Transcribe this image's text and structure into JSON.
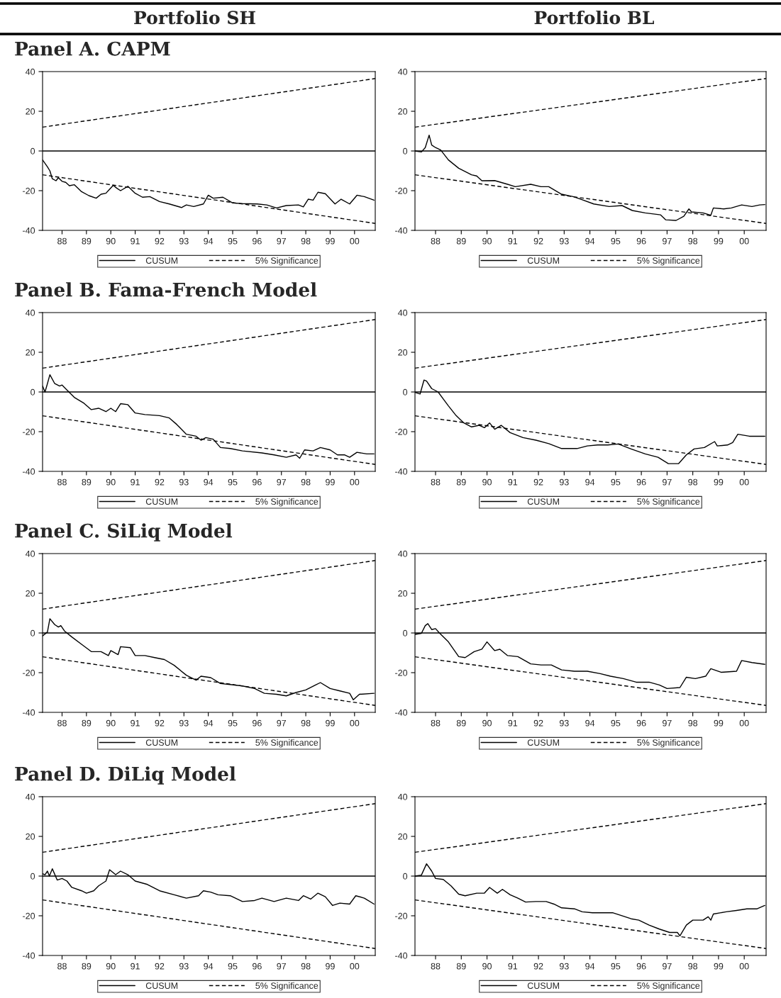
{
  "chart_data": [
    {
      "type": "line",
      "title": "Panel A. CAPM",
      "subtitle": "Portfolio SH",
      "xlim": [
        1987.2,
        2000.85
      ],
      "ylim": [
        -40,
        40
      ],
      "yticks": [
        -40,
        -20,
        0,
        20,
        40
      ],
      "xticks": [
        {
          "value": 1988,
          "label": "88"
        },
        {
          "value": 1989,
          "label": "89"
        },
        {
          "value": 1990,
          "label": "90"
        },
        {
          "value": 1991,
          "label": "91"
        },
        {
          "value": 1992,
          "label": "92"
        },
        {
          "value": 1993,
          "label": "93"
        },
        {
          "value": 1994,
          "label": "94"
        },
        {
          "value": 1995,
          "label": "95"
        },
        {
          "value": 1996,
          "label": "96"
        },
        {
          "value": 1997,
          "label": "97"
        },
        {
          "value": 1998,
          "label": "98"
        },
        {
          "value": 1999,
          "label": "99"
        },
        {
          "value": 2000,
          "label": "00"
        }
      ],
      "legend": "bottom",
      "ref_lines": [
        {
          "axis": "y",
          "value": 0,
          "color": "#000000"
        }
      ],
      "series": [
        {
          "name": "CUSUM",
          "color": "#000000",
          "line_style": "solid",
          "x": [
            1987.2,
            1987.4,
            1987.5,
            1987.6,
            1987.75,
            1987.85,
            1988.0,
            1988.15,
            1988.3,
            1988.5,
            1988.8,
            1989.1,
            1989.4,
            1989.6,
            1989.8,
            1989.95,
            1990.1,
            1990.25,
            1990.4,
            1990.7,
            1991.0,
            1991.3,
            1991.6,
            1992.0,
            1992.4,
            1992.9,
            1993.1,
            1993.4,
            1993.8,
            1994.0,
            1994.2,
            1994.6,
            1995.0,
            1995.4,
            1996.0,
            1996.4,
            1996.8,
            1997.2,
            1997.7,
            1997.9,
            1998.1,
            1998.3,
            1998.5,
            1998.8,
            1999.2,
            1999.45,
            1999.8,
            2000.1,
            2000.4,
            2000.8
          ],
          "values": [
            -4.5,
            -8,
            -10,
            -14,
            -15,
            -13.5,
            -15.3,
            -15.8,
            -17.5,
            -17,
            -20.5,
            -22.5,
            -23.8,
            -21.8,
            -21.3,
            -19.3,
            -17.3,
            -18.8,
            -20,
            -17.8,
            -21.3,
            -23.3,
            -23,
            -25.5,
            -26.7,
            -28.5,
            -27.2,
            -28,
            -26.7,
            -22.3,
            -23.8,
            -23.3,
            -26.2,
            -26.5,
            -26.7,
            -27.2,
            -28.7,
            -27.5,
            -27.2,
            -28.2,
            -24.3,
            -24.8,
            -20.8,
            -21.5,
            -26.7,
            -24.3,
            -26.7,
            -22.3,
            -23,
            -24.8
          ]
        },
        {
          "name": "5% Significance",
          "color": "#000000",
          "line_style": "dashed",
          "x": [
            1987.2,
            2000.85
          ],
          "values": [
            12,
            36.5
          ]
        },
        {
          "color": "#000000",
          "line_style": "dashed",
          "x": [
            1987.2,
            2000.85
          ],
          "values": [
            -12,
            -36.5
          ]
        }
      ]
    },
    {
      "type": "line",
      "subtitle": "Portfolio BL",
      "xlim": [
        1987.2,
        2000.85
      ],
      "ylim": [
        -40,
        40
      ],
      "yticks": [
        -40,
        -20,
        0,
        20,
        40
      ],
      "xticks": [
        {
          "value": 1988,
          "label": "88"
        },
        {
          "value": 1989,
          "label": "89"
        },
        {
          "value": 1990,
          "label": "90"
        },
        {
          "value": 1991,
          "label": "91"
        },
        {
          "value": 1992,
          "label": "92"
        },
        {
          "value": 1993,
          "label": "93"
        },
        {
          "value": 1994,
          "label": "94"
        },
        {
          "value": 1995,
          "label": "95"
        },
        {
          "value": 1996,
          "label": "96"
        },
        {
          "value": 1997,
          "label": "97"
        },
        {
          "value": 1998,
          "label": "98"
        },
        {
          "value": 1999,
          "label": "99"
        },
        {
          "value": 2000,
          "label": "00"
        }
      ],
      "legend": "bottom",
      "ref_lines": [
        {
          "axis": "y",
          "value": 0,
          "color": "#000000"
        }
      ],
      "series": [
        {
          "name": "CUSUM",
          "color": "#000000",
          "line_style": "solid",
          "x": [
            1987.2,
            1987.45,
            1987.6,
            1987.75,
            1987.85,
            1988.0,
            1988.2,
            1988.5,
            1988.9,
            1989.4,
            1989.6,
            1989.8,
            1990.3,
            1990.8,
            1991.1,
            1991.7,
            1992.1,
            1992.4,
            1992.9,
            1993.35,
            1993.65,
            1994.15,
            1994.75,
            1995.25,
            1995.65,
            1996.15,
            1996.75,
            1996.95,
            1997.35,
            1997.65,
            1997.85,
            1997.95,
            1998.4,
            1998.7,
            1998.8,
            1999.2,
            1999.5,
            1999.9,
            2000.3,
            2000.6,
            2000.8
          ],
          "values": [
            0,
            -0.5,
            1.7,
            8,
            3,
            1.7,
            0.5,
            -4.5,
            -8.7,
            -12,
            -12.6,
            -15,
            -14.9,
            -16.8,
            -18,
            -16.8,
            -18,
            -18,
            -21.8,
            -23,
            -24.3,
            -26.7,
            -28,
            -27.5,
            -30,
            -31.2,
            -32.2,
            -34.7,
            -35,
            -32.9,
            -29.2,
            -30.7,
            -31.2,
            -32.4,
            -28.7,
            -29.2,
            -28.7,
            -27.2,
            -28,
            -27.2,
            -27
          ]
        },
        {
          "name": "5% Significance",
          "color": "#000000",
          "line_style": "dashed",
          "x": [
            1987.2,
            2000.85
          ],
          "values": [
            12,
            36.5
          ]
        },
        {
          "color": "#000000",
          "line_style": "dashed",
          "x": [
            1987.2,
            2000.85
          ],
          "values": [
            -12,
            -36.5
          ]
        }
      ]
    },
    {
      "type": "line",
      "title": "Panel B. Fama-French Model",
      "xlim": [
        1987.2,
        2000.85
      ],
      "ylim": [
        -40,
        40
      ],
      "yticks": [
        -40,
        -20,
        0,
        20,
        40
      ],
      "xticks": [
        {
          "value": 1988,
          "label": "88"
        },
        {
          "value": 1989,
          "label": "89"
        },
        {
          "value": 1990,
          "label": "90"
        },
        {
          "value": 1991,
          "label": "91"
        },
        {
          "value": 1992,
          "label": "92"
        },
        {
          "value": 1993,
          "label": "93"
        },
        {
          "value": 1994,
          "label": "94"
        },
        {
          "value": 1995,
          "label": "95"
        },
        {
          "value": 1996,
          "label": "96"
        },
        {
          "value": 1997,
          "label": "97"
        },
        {
          "value": 1998,
          "label": "98"
        },
        {
          "value": 1999,
          "label": "99"
        },
        {
          "value": 2000,
          "label": "00"
        }
      ],
      "legend": "bottom",
      "ref_lines": [
        {
          "axis": "y",
          "value": 0,
          "color": "#000000"
        }
      ],
      "series": [
        {
          "name": "CUSUM",
          "color": "#000000",
          "line_style": "solid",
          "x": [
            1987.2,
            1987.3,
            1987.4,
            1987.5,
            1987.7,
            1987.9,
            1988.0,
            1988.2,
            1988.5,
            1988.9,
            1989.2,
            1989.5,
            1989.8,
            1990.0,
            1990.2,
            1990.4,
            1990.7,
            1991.0,
            1991.4,
            1992.0,
            1992.4,
            1992.7,
            1993.1,
            1993.5,
            1993.7,
            1993.9,
            1994.2,
            1994.5,
            1994.9,
            1995.4,
            1996.2,
            1996.7,
            1997.2,
            1997.6,
            1997.75,
            1997.95,
            1998.3,
            1998.6,
            1999.0,
            1999.3,
            1999.6,
            1999.8,
            2000.1,
            2000.5,
            2000.8
          ],
          "values": [
            3,
            0,
            4.2,
            8.7,
            4.2,
            3,
            3.5,
            1,
            -2.7,
            -5.7,
            -8.9,
            -8.2,
            -9.9,
            -8.2,
            -9.9,
            -5.9,
            -6.4,
            -10.6,
            -11.4,
            -11.9,
            -13.1,
            -16.3,
            -21.3,
            -22.3,
            -24.3,
            -23,
            -23.8,
            -28,
            -28.5,
            -29.7,
            -30.7,
            -31.7,
            -32.9,
            -31.7,
            -33.4,
            -29.2,
            -29.7,
            -28,
            -29.2,
            -31.7,
            -31.7,
            -32.9,
            -30.4,
            -31.2,
            -31.2
          ]
        },
        {
          "name": "5% Significance",
          "color": "#000000",
          "line_style": "dashed",
          "x": [
            1987.2,
            2000.85
          ],
          "values": [
            12,
            36.5
          ]
        },
        {
          "color": "#000000",
          "line_style": "dashed",
          "x": [
            1987.2,
            2000.85
          ],
          "values": [
            -12,
            -36.5
          ]
        }
      ]
    },
    {
      "type": "line",
      "xlim": [
        1987.2,
        2000.85
      ],
      "ylim": [
        -40,
        40
      ],
      "yticks": [
        -40,
        -20,
        0,
        20,
        40
      ],
      "xticks": [
        {
          "value": 1988,
          "label": "88"
        },
        {
          "value": 1989,
          "label": "89"
        },
        {
          "value": 1990,
          "label": "90"
        },
        {
          "value": 1991,
          "label": "91"
        },
        {
          "value": 1992,
          "label": "92"
        },
        {
          "value": 1993,
          "label": "93"
        },
        {
          "value": 1994,
          "label": "94"
        },
        {
          "value": 1995,
          "label": "95"
        },
        {
          "value": 1996,
          "label": "96"
        },
        {
          "value": 1997,
          "label": "97"
        },
        {
          "value": 1998,
          "label": "98"
        },
        {
          "value": 1999,
          "label": "99"
        },
        {
          "value": 2000,
          "label": "00"
        }
      ],
      "legend": "bottom",
      "ref_lines": [
        {
          "axis": "y",
          "value": 0,
          "color": "#000000"
        }
      ],
      "series": [
        {
          "name": "CUSUM",
          "color": "#000000",
          "line_style": "solid",
          "x": [
            1987.2,
            1987.4,
            1987.55,
            1987.65,
            1987.85,
            1988.1,
            1988.3,
            1988.5,
            1988.8,
            1989.1,
            1989.4,
            1989.7,
            1989.9,
            1990.1,
            1990.3,
            1990.55,
            1990.9,
            1991.4,
            1991.9,
            1992.4,
            1992.9,
            1993.5,
            1993.9,
            1994.3,
            1994.7,
            1995.1,
            1995.6,
            1996.15,
            1996.65,
            1997.05,
            1997.45,
            1997.75,
            1998.05,
            1998.45,
            1998.85,
            1998.95,
            1999.35,
            1999.55,
            1999.75,
            2000.2,
            2000.8
          ],
          "values": [
            -0.2,
            -1,
            6,
            5.5,
            1.7,
            0,
            -3.5,
            -7,
            -11.9,
            -15.6,
            -17.6,
            -16.8,
            -18,
            -15.6,
            -18.8,
            -16.8,
            -20.5,
            -23,
            -24.3,
            -26,
            -28.5,
            -28.5,
            -27.2,
            -26.7,
            -26.7,
            -26.2,
            -28.7,
            -31.2,
            -32.9,
            -36.1,
            -36.1,
            -31.7,
            -28.7,
            -28,
            -25,
            -27.2,
            -26.7,
            -25.5,
            -21.3,
            -22.3,
            -22.3
          ]
        },
        {
          "name": "5% Significance",
          "color": "#000000",
          "line_style": "dashed",
          "x": [
            1987.2,
            2000.85
          ],
          "values": [
            12,
            36.5
          ]
        },
        {
          "color": "#000000",
          "line_style": "dashed",
          "x": [
            1987.2,
            2000.85
          ],
          "values": [
            -12,
            -36.5
          ]
        }
      ]
    },
    {
      "type": "line",
      "title": "Panel C. SiLiq Model",
      "xlim": [
        1987.2,
        2000.85
      ],
      "ylim": [
        -40,
        40
      ],
      "yticks": [
        -40,
        -20,
        0,
        20,
        40
      ],
      "xticks": [
        {
          "value": 1988,
          "label": "88"
        },
        {
          "value": 1989,
          "label": "89"
        },
        {
          "value": 1990,
          "label": "90"
        },
        {
          "value": 1991,
          "label": "91"
        },
        {
          "value": 1992,
          "label": "92"
        },
        {
          "value": 1993,
          "label": "93"
        },
        {
          "value": 1994,
          "label": "94"
        },
        {
          "value": 1995,
          "label": "95"
        },
        {
          "value": 1996,
          "label": "96"
        },
        {
          "value": 1997,
          "label": "97"
        },
        {
          "value": 1998,
          "label": "98"
        },
        {
          "value": 1999,
          "label": "99"
        },
        {
          "value": 2000,
          "label": "00"
        }
      ],
      "legend": "bottom",
      "ref_lines": [
        {
          "axis": "y",
          "value": 0,
          "color": "#000000"
        }
      ],
      "series": [
        {
          "name": "CUSUM",
          "color": "#000000",
          "line_style": "solid",
          "x": [
            1987.2,
            1987.4,
            1987.5,
            1987.7,
            1987.85,
            1987.95,
            1988.1,
            1988.4,
            1988.8,
            1989.2,
            1989.6,
            1989.9,
            1990.0,
            1990.3,
            1990.4,
            1990.8,
            1991.0,
            1991.4,
            1991.8,
            1992.2,
            1992.6,
            1993.1,
            1993.5,
            1993.7,
            1994.1,
            1994.5,
            1994.9,
            1995.4,
            1995.9,
            1996.3,
            1996.8,
            1997.2,
            1997.6,
            1998.0,
            1998.4,
            1998.6,
            1999.0,
            1999.4,
            1999.8,
            1999.95,
            2000.2,
            2000.8
          ],
          "values": [
            -1.5,
            0.5,
            7.2,
            4.2,
            3,
            3.7,
            1,
            -2,
            -5.7,
            -9.4,
            -9.4,
            -11.4,
            -8.9,
            -10.9,
            -6.9,
            -7.4,
            -11.4,
            -11.4,
            -12.4,
            -13.4,
            -16.3,
            -21.3,
            -23.8,
            -21.8,
            -22.5,
            -25.5,
            -26,
            -26.7,
            -28,
            -30.4,
            -30.9,
            -31.7,
            -30,
            -28.7,
            -26.2,
            -25,
            -28,
            -29.2,
            -30.4,
            -33.7,
            -30.9,
            -30.4
          ]
        },
        {
          "name": "5% Significance",
          "color": "#000000",
          "line_style": "dashed",
          "x": [
            1987.2,
            2000.85
          ],
          "values": [
            12,
            36.5
          ]
        },
        {
          "color": "#000000",
          "line_style": "dashed",
          "x": [
            1987.2,
            2000.85
          ],
          "values": [
            -12,
            -36.5
          ]
        }
      ]
    },
    {
      "type": "line",
      "xlim": [
        1987.2,
        2000.85
      ],
      "ylim": [
        -40,
        40
      ],
      "yticks": [
        -40,
        -20,
        0,
        20,
        40
      ],
      "xticks": [
        {
          "value": 1988,
          "label": "88"
        },
        {
          "value": 1989,
          "label": "89"
        },
        {
          "value": 1990,
          "label": "90"
        },
        {
          "value": 1991,
          "label": "91"
        },
        {
          "value": 1992,
          "label": "92"
        },
        {
          "value": 1993,
          "label": "93"
        },
        {
          "value": 1994,
          "label": "94"
        },
        {
          "value": 1995,
          "label": "95"
        },
        {
          "value": 1996,
          "label": "96"
        },
        {
          "value": 1997,
          "label": "97"
        },
        {
          "value": 1998,
          "label": "98"
        },
        {
          "value": 1999,
          "label": "99"
        },
        {
          "value": 2000,
          "label": "00"
        }
      ],
      "legend": "bottom",
      "ref_lines": [
        {
          "axis": "y",
          "value": 0,
          "color": "#000000"
        }
      ],
      "series": [
        {
          "name": "CUSUM",
          "color": "#000000",
          "line_style": "solid",
          "x": [
            1987.2,
            1987.45,
            1987.6,
            1987.7,
            1987.85,
            1988.0,
            1988.15,
            1988.5,
            1988.9,
            1989.15,
            1989.5,
            1989.8,
            1990.0,
            1990.3,
            1990.5,
            1990.8,
            1991.2,
            1991.7,
            1992.1,
            1992.5,
            1992.9,
            1993.4,
            1993.9,
            1994.4,
            1994.8,
            1995.3,
            1995.8,
            1996.3,
            1996.7,
            1997.0,
            1997.5,
            1997.75,
            1998.1,
            1998.5,
            1998.7,
            1999.1,
            1999.7,
            1999.9,
            2000.3,
            2000.8
          ],
          "values": [
            -0.7,
            -0.2,
            3.7,
            4.7,
            1.7,
            2.2,
            0,
            -4.5,
            -11.9,
            -12.4,
            -9.4,
            -8.2,
            -4.5,
            -8.9,
            -8.2,
            -11.4,
            -11.9,
            -15.6,
            -16.1,
            -16.1,
            -18.6,
            -19.3,
            -19.3,
            -20.5,
            -21.8,
            -23,
            -24.8,
            -24.8,
            -26.2,
            -28,
            -27.5,
            -22.3,
            -23,
            -21.8,
            -18,
            -19.8,
            -19.3,
            -13.9,
            -14.9,
            -15.8
          ]
        },
        {
          "name": "5% Significance",
          "color": "#000000",
          "line_style": "dashed",
          "x": [
            1987.2,
            2000.85
          ],
          "values": [
            12,
            36.5
          ]
        },
        {
          "color": "#000000",
          "line_style": "dashed",
          "x": [
            1987.2,
            2000.85
          ],
          "values": [
            -12,
            -36.5
          ]
        }
      ]
    },
    {
      "type": "line",
      "title": "Panel D. DiLiq Model",
      "xlim": [
        1987.2,
        2000.85
      ],
      "ylim": [
        -40,
        40
      ],
      "yticks": [
        -40,
        -20,
        0,
        20,
        40
      ],
      "xticks": [
        {
          "value": 1988,
          "label": "88"
        },
        {
          "value": 1989,
          "label": "89"
        },
        {
          "value": 1990,
          "label": "90"
        },
        {
          "value": 1991,
          "label": "91"
        },
        {
          "value": 1992,
          "label": "92"
        },
        {
          "value": 1993,
          "label": "93"
        },
        {
          "value": 1994,
          "label": "94"
        },
        {
          "value": 1995,
          "label": "95"
        },
        {
          "value": 1996,
          "label": "96"
        },
        {
          "value": 1997,
          "label": "97"
        },
        {
          "value": 1998,
          "label": "98"
        },
        {
          "value": 1999,
          "label": "99"
        },
        {
          "value": 2000,
          "label": "00"
        }
      ],
      "legend": "bottom",
      "ref_lines": [
        {
          "axis": "y",
          "value": 0,
          "color": "#000000"
        }
      ],
      "series": [
        {
          "name": "CUSUM",
          "color": "#000000",
          "line_style": "solid",
          "x": [
            1987.2,
            1987.3,
            1987.4,
            1987.48,
            1987.6,
            1987.8,
            1988.0,
            1988.2,
            1988.4,
            1988.8,
            1989.0,
            1989.3,
            1989.5,
            1989.8,
            1989.95,
            1990.2,
            1990.4,
            1990.7,
            1991.0,
            1991.5,
            1992.0,
            1992.6,
            1993.1,
            1993.6,
            1993.8,
            1994.1,
            1994.4,
            1994.9,
            1995.4,
            1995.9,
            1996.2,
            1996.7,
            1997.2,
            1997.7,
            1997.9,
            1998.2,
            1998.5,
            1998.8,
            1999.1,
            1999.4,
            1999.8,
            2000.05,
            2000.4,
            2000.8
          ],
          "values": [
            1.2,
            0.7,
            2.5,
            0,
            3.7,
            -2,
            -1.2,
            -2.5,
            -5.7,
            -7.4,
            -8.6,
            -7.4,
            -4.9,
            -2.5,
            3.2,
            0.7,
            2.5,
            0.7,
            -2.5,
            -4.2,
            -7.4,
            -9.4,
            -11.1,
            -9.9,
            -7.4,
            -8.1,
            -9.4,
            -9.9,
            -12.8,
            -12.3,
            -11.1,
            -12.8,
            -11.1,
            -12.3,
            -9.9,
            -11.6,
            -8.6,
            -10.4,
            -14.8,
            -13.6,
            -14.1,
            -9.9,
            -11.1,
            -14.1
          ]
        },
        {
          "name": "5% Significance",
          "color": "#000000",
          "line_style": "dashed",
          "x": [
            1987.2,
            2000.85
          ],
          "values": [
            12,
            36.5
          ]
        },
        {
          "color": "#000000",
          "line_style": "dashed",
          "x": [
            1987.2,
            2000.85
          ],
          "values": [
            -12,
            -36.5
          ]
        }
      ]
    },
    {
      "type": "line",
      "xlim": [
        1987.2,
        2000.85
      ],
      "ylim": [
        -40,
        40
      ],
      "yticks": [
        -40,
        -20,
        0,
        20,
        40
      ],
      "xticks": [
        {
          "value": 1988,
          "label": "88"
        },
        {
          "value": 1989,
          "label": "89"
        },
        {
          "value": 1990,
          "label": "90"
        },
        {
          "value": 1991,
          "label": "91"
        },
        {
          "value": 1992,
          "label": "92"
        },
        {
          "value": 1993,
          "label": "93"
        },
        {
          "value": 1994,
          "label": "94"
        },
        {
          "value": 1995,
          "label": "95"
        },
        {
          "value": 1996,
          "label": "96"
        },
        {
          "value": 1997,
          "label": "97"
        },
        {
          "value": 1998,
          "label": "98"
        },
        {
          "value": 1999,
          "label": "99"
        },
        {
          "value": 2000,
          "label": "00"
        }
      ],
      "legend": "bottom",
      "ref_lines": [
        {
          "axis": "y",
          "value": 0,
          "color": "#000000"
        }
      ],
      "series": [
        {
          "name": "CUSUM",
          "color": "#000000",
          "line_style": "solid",
          "x": [
            1987.2,
            1987.45,
            1987.65,
            1987.85,
            1988.0,
            1988.3,
            1988.6,
            1988.9,
            1989.15,
            1989.6,
            1989.9,
            1990.1,
            1990.4,
            1990.6,
            1990.9,
            1991.2,
            1991.5,
            1991.9,
            1992.3,
            1992.6,
            1992.9,
            1993.4,
            1993.7,
            1994.1,
            1994.5,
            1994.9,
            1995.2,
            1995.6,
            1995.9,
            1996.3,
            1996.7,
            1997.1,
            1997.4,
            1997.5,
            1997.75,
            1998.0,
            1998.4,
            1998.6,
            1998.7,
            1998.8,
            1999.3,
            1999.7,
            2000.1,
            2000.5,
            2000.8
          ],
          "values": [
            0,
            0.5,
            6.2,
            2.5,
            -1.2,
            -1.7,
            -4.9,
            -9.1,
            -9.9,
            -8.6,
            -8.6,
            -5.7,
            -8.6,
            -6.7,
            -9.4,
            -11.1,
            -13.1,
            -12.8,
            -12.8,
            -14.1,
            -16,
            -16.5,
            -18,
            -18.5,
            -18.5,
            -18.5,
            -19.8,
            -21.5,
            -22.2,
            -24.7,
            -26.7,
            -28.4,
            -28.4,
            -30.1,
            -24.7,
            -22.2,
            -22.2,
            -20.5,
            -22.2,
            -19.1,
            -18,
            -17.3,
            -16.5,
            -16.5,
            -14.8
          ]
        },
        {
          "name": "5% Significance",
          "color": "#000000",
          "line_style": "dashed",
          "x": [
            1987.2,
            2000.85
          ],
          "values": [
            12,
            36.5
          ]
        },
        {
          "color": "#000000",
          "line_style": "dashed",
          "x": [
            1987.2,
            2000.85
          ],
          "values": [
            -12,
            -36.5
          ]
        }
      ]
    }
  ]
}
